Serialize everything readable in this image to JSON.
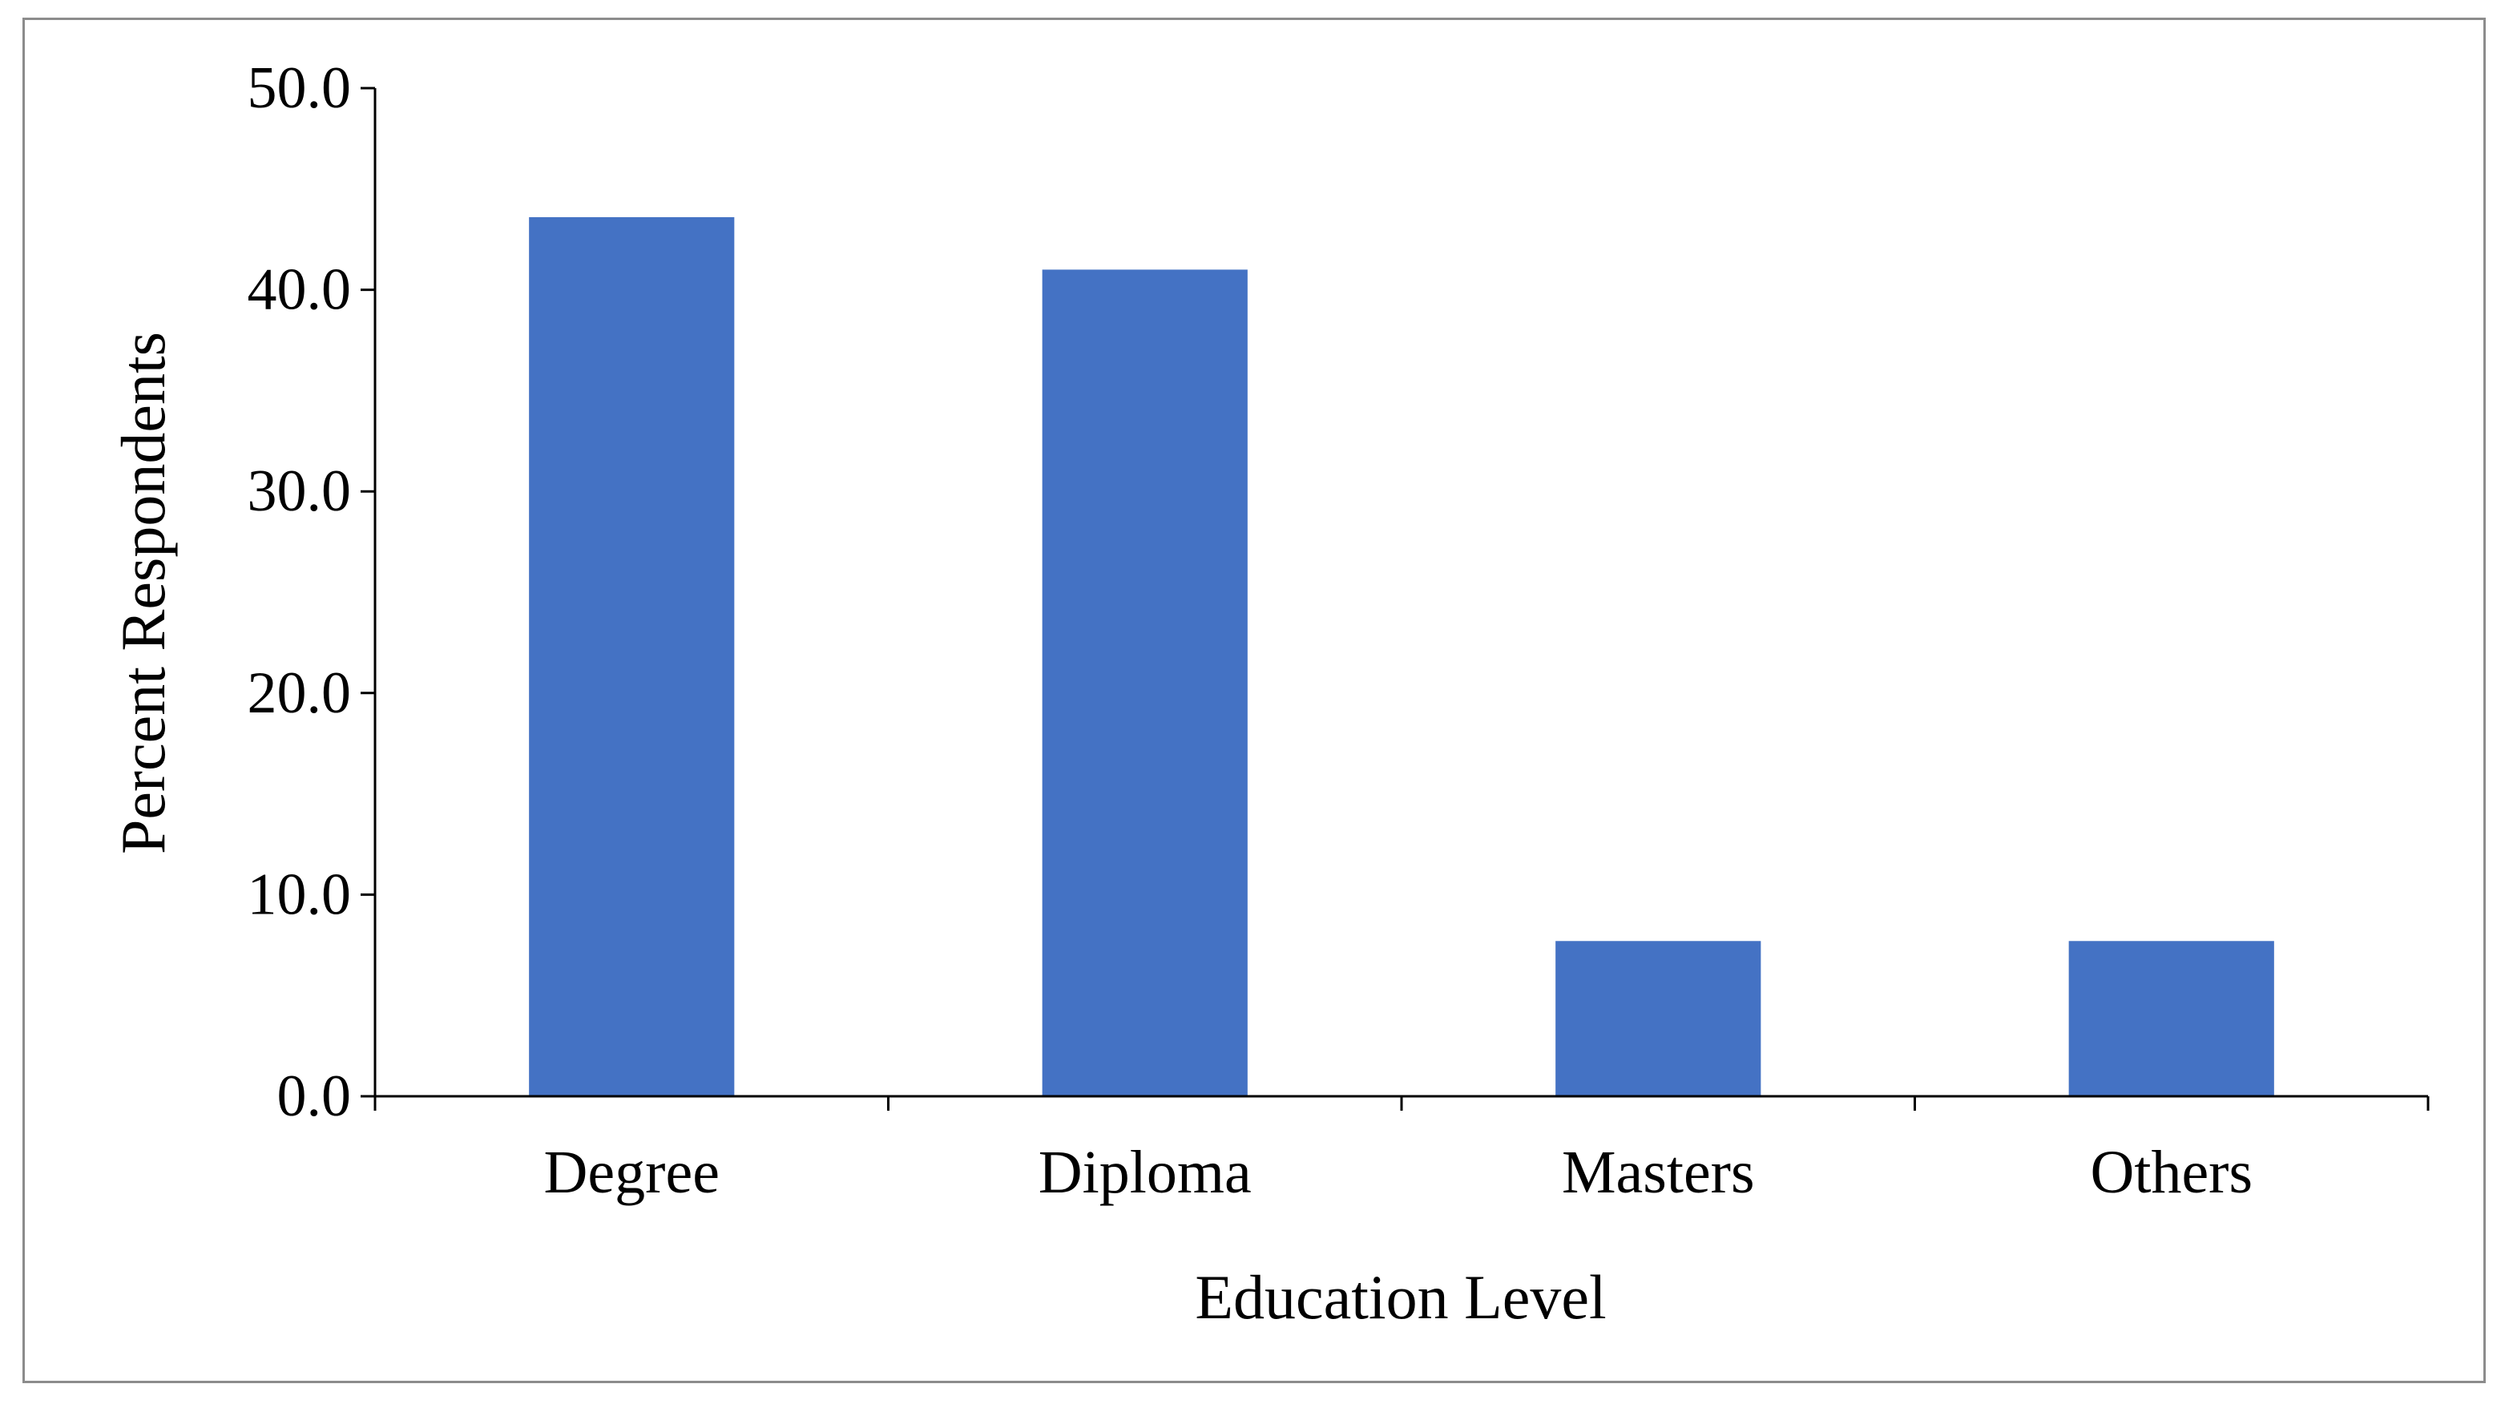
{
  "chart_data": {
    "type": "bar",
    "categories": [
      "Degree",
      "Diploma",
      "Masters",
      "Others"
    ],
    "values": [
      43.6,
      41.0,
      7.7,
      7.7
    ],
    "title": "",
    "xlabel": "Education Level",
    "ylabel": "Percent Respondents",
    "ylim": [
      0,
      50
    ],
    "yticks": [
      "0.0",
      "10.0",
      "20.0",
      "30.0",
      "40.0",
      "50.0"
    ],
    "grid": false,
    "legend": "none",
    "bar_color": "#4472c4",
    "axis_color": "#000000",
    "frame_color": "#8c8c8c"
  }
}
